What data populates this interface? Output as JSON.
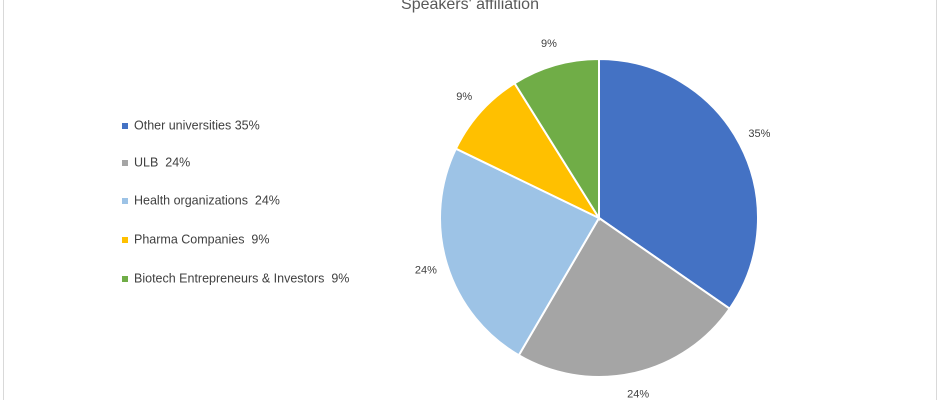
{
  "chart_data": {
    "type": "pie",
    "title": "Speakers' affiliation",
    "categories": [
      "Other universities 35%",
      "ULB  24%",
      "Health organizations  24%",
      "Pharma Companies  9%",
      "Biotech Entrepreneurs & Investors  9%"
    ],
    "values": [
      35,
      24,
      24,
      9,
      9
    ],
    "value_labels": [
      "35%",
      "24%",
      "24%",
      "9%",
      "9%"
    ],
    "colors": [
      "#4472c4",
      "#a5a5a5",
      "#9dc3e6",
      "#ffc000",
      "#70ad47"
    ],
    "legend": "left"
  }
}
